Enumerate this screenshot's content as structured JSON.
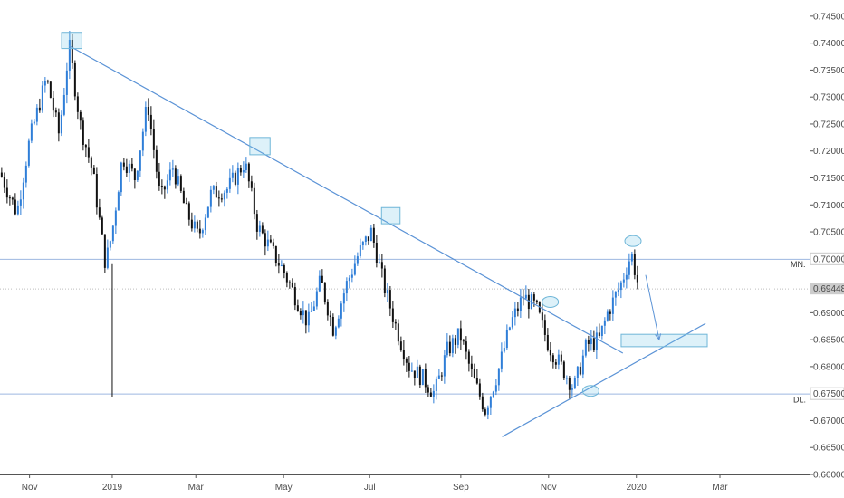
{
  "chart_data": {
    "type": "candlestick",
    "y_axis": {
      "range": [
        0.66,
        0.748
      ],
      "ticks": [
        "0.74500",
        "0.74000",
        "0.73500",
        "0.73000",
        "0.72500",
        "0.72000",
        "0.71500",
        "0.71000",
        "0.70500",
        "0.70000",
        "0.69500",
        "0.69000",
        "0.68500",
        "0.68000",
        "0.67500",
        "0.67000",
        "0.66500",
        "0.66000"
      ],
      "tick_values": [
        0.745,
        0.74,
        0.735,
        0.73,
        0.725,
        0.72,
        0.715,
        0.71,
        0.705,
        0.7,
        0.695,
        0.69,
        0.685,
        0.68,
        0.675,
        0.67,
        0.665,
        0.66
      ]
    },
    "x_axis": {
      "labels": [
        "Nov",
        "2019",
        "Mar",
        "May",
        "Jul",
        "Sep",
        "Nov",
        "2020",
        "Mar"
      ],
      "label_t": [
        0.035,
        0.133,
        0.232,
        0.336,
        0.438,
        0.546,
        0.65,
        0.754,
        0.853
      ]
    },
    "price_labels": {
      "resistance": "0.70000",
      "current": "0.69448",
      "support": "0.67500"
    },
    "levels": [
      {
        "label": "MN.",
        "value": 0.7
      },
      {
        "label": "DL.",
        "value": 0.675
      }
    ],
    "current_price": 0.69448,
    "ohlc_waypoints": [
      [
        0.0,
        0.716
      ],
      [
        0.02,
        0.7085
      ],
      [
        0.035,
        0.722
      ],
      [
        0.055,
        0.7335
      ],
      [
        0.07,
        0.723
      ],
      [
        0.082,
        0.7395
      ],
      [
        0.095,
        0.725
      ],
      [
        0.11,
        0.716
      ],
      [
        0.125,
        0.699
      ],
      [
        0.133,
        0.705
      ],
      [
        0.145,
        0.719
      ],
      [
        0.16,
        0.715
      ],
      [
        0.175,
        0.729
      ],
      [
        0.19,
        0.711
      ],
      [
        0.205,
        0.717
      ],
      [
        0.22,
        0.709
      ],
      [
        0.235,
        0.704
      ],
      [
        0.25,
        0.712
      ],
      [
        0.27,
        0.713
      ],
      [
        0.29,
        0.718
      ],
      [
        0.305,
        0.706
      ],
      [
        0.32,
        0.702
      ],
      [
        0.335,
        0.698
      ],
      [
        0.35,
        0.693
      ],
      [
        0.365,
        0.688
      ],
      [
        0.38,
        0.696
      ],
      [
        0.395,
        0.687
      ],
      [
        0.41,
        0.695
      ],
      [
        0.425,
        0.701
      ],
      [
        0.44,
        0.705
      ],
      [
        0.455,
        0.695
      ],
      [
        0.47,
        0.687
      ],
      [
        0.485,
        0.68
      ],
      [
        0.5,
        0.678
      ],
      [
        0.515,
        0.675
      ],
      [
        0.53,
        0.683
      ],
      [
        0.545,
        0.686
      ],
      [
        0.56,
        0.678
      ],
      [
        0.575,
        0.672
      ],
      [
        0.59,
        0.679
      ],
      [
        0.605,
        0.688
      ],
      [
        0.62,
        0.693
      ],
      [
        0.635,
        0.691
      ],
      [
        0.65,
        0.684
      ],
      [
        0.665,
        0.68
      ],
      [
        0.68,
        0.676
      ],
      [
        0.695,
        0.684
      ],
      [
        0.71,
        0.685
      ],
      [
        0.72,
        0.69
      ],
      [
        0.735,
        0.695
      ],
      [
        0.748,
        0.701
      ],
      [
        0.757,
        0.6945
      ]
    ],
    "trendlines": [
      {
        "from": [
          0.082,
          0.7395
        ],
        "to": [
          0.738,
          0.6825
        ]
      },
      {
        "from": [
          0.595,
          0.667
        ],
        "to": [
          0.836,
          0.688
        ]
      }
    ],
    "projection_arrow": {
      "from": [
        0.765,
        0.697
      ],
      "to": [
        0.781,
        0.685
      ]
    },
    "highlight_boxes": [
      {
        "t0": 0.073,
        "t1": 0.097,
        "v0": 0.742,
        "v1": 0.739
      },
      {
        "t0": 0.296,
        "t1": 0.32,
        "v0": 0.7225,
        "v1": 0.7193
      },
      {
        "t0": 0.452,
        "t1": 0.474,
        "v0": 0.7095,
        "v1": 0.7065
      },
      {
        "t0": 0.736,
        "t1": 0.838,
        "v0": 0.686,
        "v1": 0.6837
      }
    ],
    "highlight_ellipses": [
      {
        "t": 0.652,
        "v": 0.692
      },
      {
        "t": 0.7,
        "v": 0.6755
      },
      {
        "t": 0.75,
        "v": 0.7033
      }
    ]
  }
}
